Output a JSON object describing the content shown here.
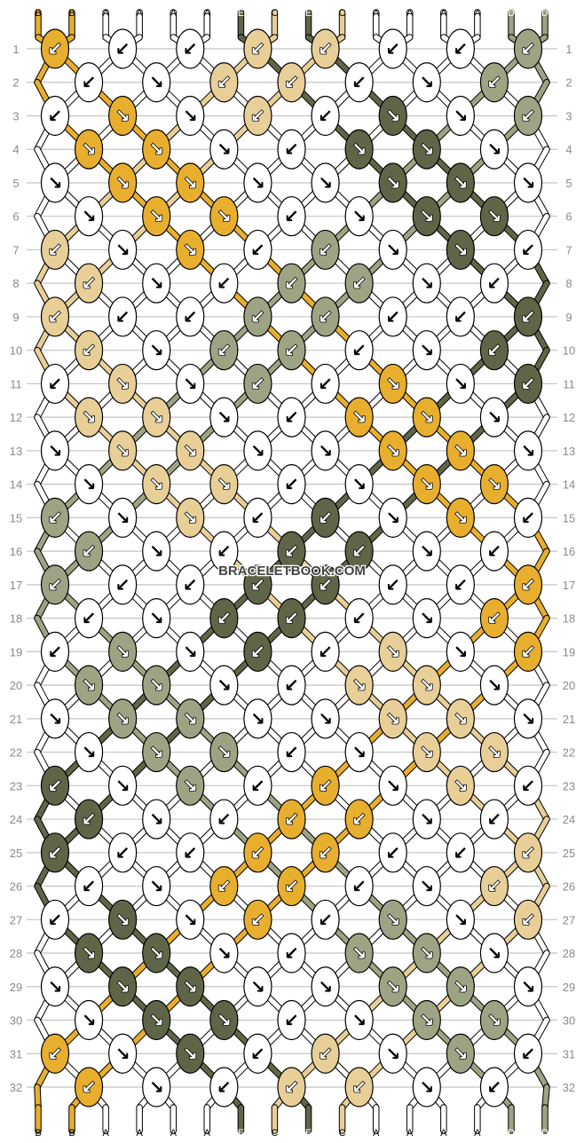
{
  "watermark": "BRACELETBOOK.COM",
  "colors": {
    "A": "#FFFFFF",
    "B": "#E8AE2E",
    "C": "#E8CF98",
    "D": "#9DA483",
    "E": "#5F6647"
  },
  "dark_threads": [
    "E",
    "D"
  ],
  "strings_top": [
    "B",
    "B",
    "A",
    "A",
    "A",
    "A",
    "E",
    "C",
    "E",
    "C",
    "A",
    "A",
    "A",
    "A",
    "D",
    "D"
  ],
  "strings_bottom": [
    "B",
    "B",
    "A",
    "A",
    "A",
    "A",
    "E",
    "C",
    "E",
    "C",
    "A",
    "A",
    "A",
    "A",
    "D",
    "D"
  ],
  "arrow_glyphs": {
    "L": "↙",
    "R": "↘"
  },
  "rows": [
    [
      "BL",
      "AL",
      "AL",
      "CL",
      "CL",
      "AL",
      "AL",
      "DL"
    ],
    [
      "AL",
      "AR",
      "CL",
      "CL",
      "AL",
      "AR",
      "DL"
    ],
    [
      "AL",
      "BR",
      "AR",
      "CL",
      "AL",
      "ER",
      "AR",
      "DL"
    ],
    [
      "BR",
      "BR",
      "AR",
      "AL",
      "ER",
      "ER",
      "AR"
    ],
    [
      "AR",
      "BR",
      "BR",
      "AR",
      "AR",
      "ER",
      "ER",
      "AR"
    ],
    [
      "AR",
      "BR",
      "BR",
      "AL",
      "AR",
      "ER",
      "ER"
    ],
    [
      "CL",
      "AR",
      "BR",
      "AL",
      "DL",
      "AR",
      "ER",
      "AL"
    ],
    [
      "CL",
      "AR",
      "AL",
      "DL",
      "DL",
      "AR",
      "AL"
    ],
    [
      "CL",
      "AL",
      "AL",
      "DL",
      "DL",
      "AL",
      "AL",
      "EL"
    ],
    [
      "CL",
      "AR",
      "DL",
      "DL",
      "AL",
      "AR",
      "EL"
    ],
    [
      "AL",
      "CR",
      "AR",
      "DL",
      "AL",
      "BR",
      "AR",
      "EL"
    ],
    [
      "CR",
      "CR",
      "AR",
      "AL",
      "BR",
      "BR",
      "AR"
    ],
    [
      "AR",
      "CR",
      "CR",
      "AR",
      "AR",
      "BR",
      "BR",
      "AR"
    ],
    [
      "AR",
      "CR",
      "CR",
      "AL",
      "AR",
      "BR",
      "BR"
    ],
    [
      "DL",
      "AR",
      "CR",
      "AL",
      "EL",
      "AR",
      "BR",
      "AL"
    ],
    [
      "DL",
      "AR",
      "AL",
      "EL",
      "EL",
      "AR",
      "AL"
    ],
    [
      "DL",
      "AL",
      "AL",
      "EL",
      "EL",
      "AL",
      "AL",
      "BL"
    ],
    [
      "AL",
      "AR",
      "EL",
      "EL",
      "AL",
      "AR",
      "BL"
    ],
    [
      "AL",
      "DR",
      "AR",
      "EL",
      "AL",
      "CR",
      "AR",
      "BL"
    ],
    [
      "DR",
      "DR",
      "AR",
      "AL",
      "CR",
      "CR",
      "AR"
    ],
    [
      "AR",
      "DR",
      "DR",
      "AR",
      "AR",
      "CR",
      "CR",
      "AR"
    ],
    [
      "AR",
      "DR",
      "DR",
      "AL",
      "AR",
      "CR",
      "CR"
    ],
    [
      "EL",
      "AR",
      "DR",
      "AL",
      "BL",
      "AR",
      "CR",
      "AL"
    ],
    [
      "EL",
      "AR",
      "AL",
      "BL",
      "BL",
      "AR",
      "AL"
    ],
    [
      "EL",
      "AL",
      "AL",
      "BL",
      "BL",
      "AL",
      "AL",
      "CL"
    ],
    [
      "AL",
      "AR",
      "BL",
      "BL",
      "AL",
      "AR",
      "CL"
    ],
    [
      "AL",
      "ER",
      "AR",
      "BL",
      "AL",
      "DR",
      "AR",
      "CL"
    ],
    [
      "ER",
      "ER",
      "AR",
      "AL",
      "DR",
      "DR",
      "AR"
    ],
    [
      "AR",
      "ER",
      "ER",
      "AR",
      "AR",
      "DR",
      "DR",
      "AR"
    ],
    [
      "AR",
      "ER",
      "ER",
      "AL",
      "AR",
      "DR",
      "DR"
    ],
    [
      "BL",
      "AR",
      "ER",
      "AL",
      "CL",
      "AR",
      "DR",
      "AL"
    ],
    [
      "BL",
      "AR",
      "AL",
      "CL",
      "CL",
      "AR",
      "AL"
    ]
  ],
  "row_numbers": [
    "1",
    "2",
    "3",
    "4",
    "5",
    "6",
    "7",
    "8",
    "9",
    "10",
    "11",
    "12",
    "13",
    "14",
    "15",
    "16",
    "17",
    "18",
    "19",
    "20",
    "21",
    "22",
    "23",
    "24",
    "25",
    "26",
    "27",
    "28",
    "29",
    "30",
    "31",
    "32"
  ]
}
